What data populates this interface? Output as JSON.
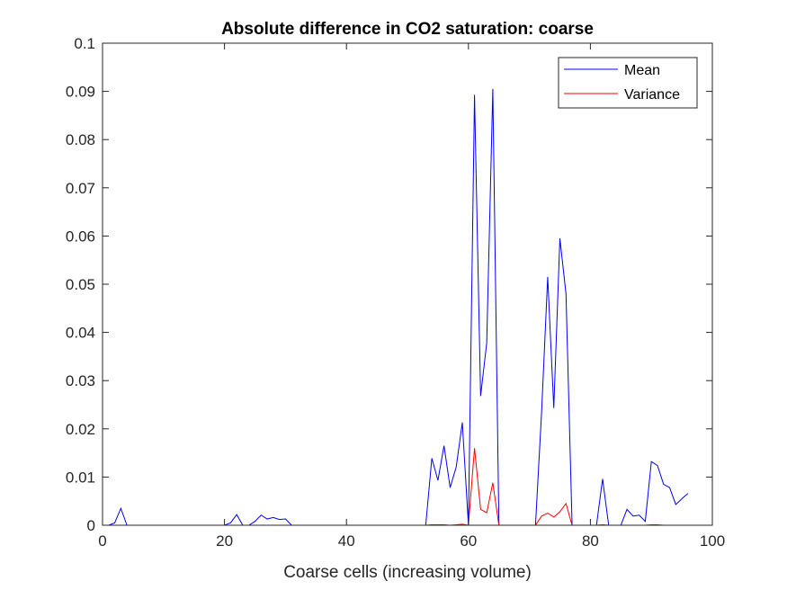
{
  "chart_data": {
    "type": "line",
    "title": "Absolute difference in CO2 saturation: coarse",
    "xlabel": "Coarse cells (increasing volume)",
    "ylabel": "",
    "xlim": [
      0,
      100
    ],
    "ylim": [
      0,
      0.1
    ],
    "xticks": [
      0,
      20,
      40,
      60,
      80,
      100
    ],
    "yticks": [
      0,
      0.01,
      0.02,
      0.03,
      0.04,
      0.05,
      0.06,
      0.07,
      0.08,
      0.09,
      0.1
    ],
    "xtick_labels": [
      "0",
      "20",
      "40",
      "60",
      "80",
      "100"
    ],
    "ytick_labels": [
      "0",
      "0.01",
      "0.02",
      "0.03",
      "0.04",
      "0.05",
      "0.06",
      "0.07",
      "0.08",
      "0.09",
      "0.1"
    ],
    "grid": false,
    "legend_position": "top-right",
    "series": [
      {
        "name": "Mean",
        "color": "#0000ff",
        "x": [
          1,
          2,
          3,
          4,
          5,
          6,
          7,
          8,
          9,
          10,
          11,
          12,
          13,
          14,
          15,
          16,
          17,
          18,
          19,
          20,
          21,
          22,
          23,
          24,
          25,
          26,
          27,
          28,
          29,
          30,
          31,
          32,
          33,
          34,
          35,
          36,
          37,
          38,
          39,
          40,
          41,
          42,
          43,
          44,
          45,
          46,
          47,
          48,
          49,
          50,
          51,
          52,
          53,
          54,
          55,
          56,
          57,
          58,
          59,
          60,
          61,
          62,
          63,
          64,
          65,
          66,
          67,
          68,
          69,
          70,
          71,
          72,
          73,
          74,
          75,
          76,
          77,
          78,
          79,
          80,
          81,
          82,
          83,
          84,
          85,
          86,
          87,
          88,
          89,
          90,
          91,
          92,
          93,
          94,
          95,
          96
        ],
        "y": [
          0,
          0.0005,
          0.0035,
          0,
          0,
          0,
          0,
          0,
          0,
          0,
          0,
          0,
          0,
          0,
          0,
          0,
          0,
          0,
          0,
          0,
          0.0005,
          0.0022,
          0,
          0,
          0.0008,
          0.0021,
          0.0013,
          0.0016,
          0.0012,
          0.0013,
          0,
          0,
          0,
          0,
          0,
          0,
          0,
          0,
          0,
          0,
          0,
          0,
          0,
          0,
          0,
          0,
          0,
          0,
          0,
          0,
          0,
          0,
          0,
          0.0139,
          0.0093,
          0.0165,
          0.0078,
          0.0121,
          0.0213,
          0,
          0.0893,
          0.0268,
          0.0378,
          0.0905,
          0,
          0,
          0,
          0,
          0,
          0,
          0,
          0.0235,
          0.0515,
          0.0243,
          0.0595,
          0.048,
          0,
          0,
          0,
          0,
          0,
          0.0096,
          0,
          0,
          0,
          0.0033,
          0.0019,
          0.0021,
          0.0008,
          0.0132,
          0.0124,
          0.0085,
          0.0078,
          0.0043,
          0.0055,
          0.0066
        ]
      },
      {
        "name": "Variance",
        "color": "#ff0000",
        "x": [
          1,
          2,
          3,
          4,
          5,
          6,
          7,
          8,
          9,
          10,
          11,
          12,
          13,
          14,
          15,
          16,
          17,
          18,
          19,
          20,
          21,
          22,
          23,
          24,
          25,
          26,
          27,
          28,
          29,
          30,
          31,
          32,
          33,
          34,
          35,
          36,
          37,
          38,
          39,
          40,
          41,
          42,
          43,
          44,
          45,
          46,
          47,
          48,
          49,
          50,
          51,
          52,
          53,
          54,
          55,
          56,
          57,
          58,
          59,
          60,
          61,
          62,
          63,
          64,
          65,
          66,
          67,
          68,
          69,
          70,
          71,
          72,
          73,
          74,
          75,
          76,
          77,
          78,
          79,
          80,
          81,
          82,
          83,
          84,
          85,
          86,
          87,
          88,
          89,
          90,
          91,
          92,
          93,
          94,
          95,
          96
        ],
        "y": [
          0,
          0,
          0,
          0,
          0,
          0,
          0,
          0,
          0,
          0,
          0,
          0,
          0,
          0,
          0,
          0,
          0,
          0,
          0,
          0,
          0,
          0,
          0,
          0,
          0,
          0,
          0,
          0,
          0,
          0,
          0,
          0,
          0,
          0,
          0,
          0,
          0,
          0,
          0,
          0,
          0,
          0,
          0,
          0,
          0,
          0,
          0,
          0,
          0,
          0,
          0,
          0,
          0,
          0.0001,
          0.0001,
          0.0001,
          0,
          0.0001,
          0.0002,
          0,
          0.016,
          0.0033,
          0.0026,
          0.0088,
          0,
          0,
          0,
          0,
          0,
          0,
          0,
          0.0019,
          0.0025,
          0.0017,
          0.0028,
          0.0045,
          0,
          0,
          0,
          0,
          0,
          0.0001,
          0,
          0,
          0,
          0,
          0,
          0,
          0,
          0.0001,
          0.0001,
          0,
          0,
          0,
          0,
          0
        ]
      }
    ]
  }
}
